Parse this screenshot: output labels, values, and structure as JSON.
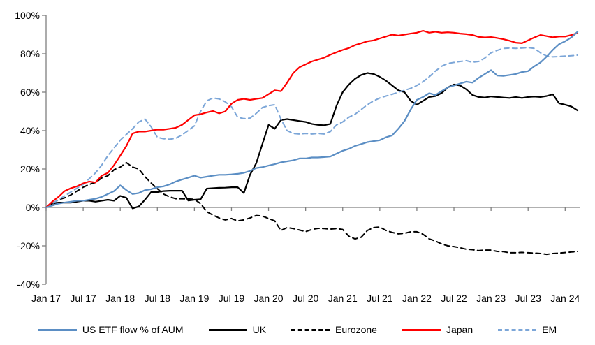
{
  "chart_data": {
    "type": "line",
    "title": "",
    "x": {
      "start_label": "Jan 17",
      "end_label": "Mar 24",
      "interval": "monthly",
      "points": 87,
      "tick_labels": [
        "Jan 17",
        "Jul 17",
        "Jan 18",
        "Jul 18",
        "Jan 19",
        "Jul 19",
        "Jan 20",
        "Jul 20",
        "Jan 21",
        "Jul 21",
        "Jan 22",
        "Jul 22",
        "Jan 23",
        "Jul 23",
        "Jan 24"
      ]
    },
    "y": {
      "min": -40,
      "max": 100,
      "step": 20,
      "unit": "%",
      "tick_labels": [
        "100%",
        "80%",
        "60%",
        "40%",
        "20%",
        "0%",
        "-20%",
        "-40%"
      ]
    },
    "grid": "zero-line-only",
    "axis_color": "#808080",
    "legend_position": "bottom",
    "series": [
      {
        "name": "US ETF flow % of AUM",
        "color": "#5B8EC4",
        "dash": false,
        "values": [
          0,
          1,
          2,
          2.5,
          3,
          3.5,
          3.5,
          4,
          4.5,
          5.5,
          7,
          8.5,
          11.5,
          9,
          7,
          7.5,
          9,
          9.5,
          10.5,
          11,
          12,
          13.5,
          14.5,
          15.5,
          16.5,
          15.5,
          16,
          16.5,
          17,
          17,
          17.2,
          17.5,
          18,
          19,
          20.5,
          21,
          21.8,
          22.5,
          23.5,
          24,
          24.5,
          25.5,
          25.5,
          26,
          26,
          26.2,
          26.5,
          28,
          29.5,
          30.5,
          32,
          33,
          34,
          34.5,
          35,
          36.5,
          37.5,
          41,
          45,
          51,
          56,
          57.5,
          59.5,
          58.5,
          60.5,
          62.5,
          63.5,
          64.5,
          65.5,
          65,
          67.5,
          69.5,
          71.5,
          68.7,
          68.5,
          69,
          69.5,
          70.5,
          71,
          73.5,
          75.5,
          78.5,
          82,
          85,
          86.5,
          88.5,
          91.5
        ]
      },
      {
        "name": "UK",
        "color": "#000000",
        "dash": false,
        "values": [
          0,
          2,
          2.5,
          2.5,
          2.5,
          3,
          3.5,
          3.5,
          3,
          3.5,
          4,
          3.5,
          6,
          5,
          -0.5,
          0.5,
          4,
          8,
          8,
          8.5,
          8.7,
          8.7,
          8.7,
          3.6,
          4,
          4.2,
          9.8,
          10,
          10.2,
          10.3,
          10.5,
          10.5,
          7.5,
          17,
          23,
          33,
          43,
          41,
          45.5,
          46,
          45.5,
          45,
          44.5,
          43.5,
          43,
          42.8,
          43.5,
          53,
          60,
          64,
          67,
          69,
          70,
          69.5,
          68,
          66,
          63.5,
          61,
          60,
          55.5,
          53.5,
          55.5,
          57.5,
          58,
          59.5,
          62.5,
          64,
          63.5,
          61.5,
          58.5,
          57.5,
          57.2,
          57.8,
          57.5,
          57.2,
          57,
          57.5,
          57,
          57.5,
          57.7,
          57.5,
          58,
          58.9,
          54.2,
          53.5,
          52.5,
          50.5
        ]
      },
      {
        "name": "Eurozone",
        "color": "#000000",
        "dash": true,
        "values": [
          0,
          2,
          4,
          5,
          6.5,
          8.5,
          10.5,
          12,
          13,
          15.3,
          16.5,
          19.6,
          21,
          23.3,
          21,
          20,
          16,
          12.7,
          9.8,
          7,
          5.5,
          4.5,
          4.5,
          4.4,
          4.2,
          2,
          -2.2,
          -4,
          -5.5,
          -6.5,
          -5.8,
          -7,
          -6.5,
          -5.5,
          -4.2,
          -4.5,
          -5.8,
          -7,
          -12,
          -10.5,
          -11,
          -11.8,
          -12.6,
          -11.5,
          -10.9,
          -11,
          -11.3,
          -11,
          -11.5,
          -15,
          -16.4,
          -15.5,
          -12,
          -10.5,
          -10.2,
          -12,
          -13,
          -13.8,
          -13.5,
          -12.7,
          -12.7,
          -14,
          -16.4,
          -17.5,
          -19,
          -20,
          -20.4,
          -21,
          -21.8,
          -22,
          -22.5,
          -22.2,
          -22.2,
          -22.9,
          -23,
          -23.6,
          -23.6,
          -23.4,
          -23.6,
          -23.8,
          -24,
          -24.4,
          -24,
          -23.8,
          -23.5,
          -23.2,
          -22.9
        ]
      },
      {
        "name": "Japan",
        "color": "#FF0000",
        "dash": false,
        "values": [
          0,
          3,
          5.5,
          8.5,
          10,
          11,
          12.5,
          13.5,
          13,
          16.5,
          18,
          22,
          27,
          32,
          38.5,
          39.5,
          39.5,
          40,
          40.5,
          40.5,
          41,
          41.5,
          43,
          45.5,
          48,
          48.5,
          49.5,
          50.2,
          49,
          50,
          54,
          56,
          56.5,
          56,
          56.5,
          57,
          59,
          61,
          60.5,
          65,
          70,
          73,
          74.5,
          76,
          77,
          78,
          79.5,
          80.8,
          82,
          83,
          84.5,
          85.5,
          86.5,
          87,
          88,
          89,
          90,
          89.5,
          90,
          90.5,
          91,
          92,
          91,
          91.5,
          91,
          91.2,
          91,
          90.5,
          90.2,
          89.8,
          88.8,
          88.5,
          88.7,
          88.2,
          87.6,
          86.8,
          85.8,
          85.5,
          87,
          88.5,
          89.8,
          89.2,
          88.6,
          89,
          89,
          89.8,
          90.8
        ]
      },
      {
        "name": "EM",
        "color": "#7CA6D8",
        "dash": true,
        "values": [
          0,
          2,
          4,
          6,
          8,
          10,
          12,
          15,
          18,
          22,
          27,
          31,
          35,
          38,
          41,
          44.5,
          46,
          42,
          36.5,
          35.8,
          35.5,
          36,
          37.8,
          40,
          42.5,
          50,
          55.5,
          57,
          56.5,
          55,
          52.4,
          47,
          46.2,
          46.5,
          49,
          52,
          53,
          53.5,
          46,
          40,
          38.5,
          38.2,
          38.5,
          38.2,
          38.5,
          38.2,
          39.5,
          43,
          44.5,
          47,
          48.5,
          51,
          53.5,
          55.5,
          57,
          58,
          58.9,
          60,
          61,
          62,
          63.5,
          65.5,
          68,
          71,
          73.5,
          75,
          75.5,
          76,
          76.4,
          75.6,
          76,
          77.8,
          80.5,
          81.8,
          82.8,
          83,
          82.8,
          83,
          83.2,
          82.8,
          80.5,
          78.8,
          78.4,
          78.6,
          78.8,
          79,
          79.3
        ]
      }
    ]
  }
}
